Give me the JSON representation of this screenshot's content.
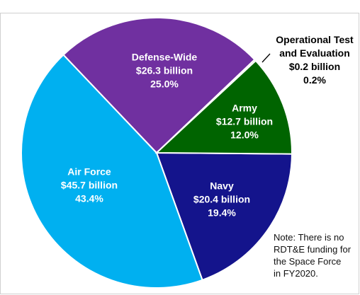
{
  "chart_data": {
    "type": "pie",
    "categories": [
      "Navy",
      "Air Force",
      "Defense-Wide",
      "Operational Test and Evaluation",
      "Army"
    ],
    "values": [
      20.4,
      45.7,
      26.3,
      0.2,
      12.7
    ],
    "value_labels": [
      "$20.4 billion",
      "$45.7 billion",
      "$26.3 billion",
      "$0.2 billion",
      "$12.7 billion"
    ],
    "percents": [
      19.4,
      43.4,
      25.0,
      0.2,
      12.0
    ],
    "percent_labels": [
      "19.4%",
      "43.4%",
      "25.0%",
      "0.2%",
      "12.0%"
    ],
    "colors": [
      "#14148c",
      "#00b0f0",
      "#7030a0",
      "#a6a6a6",
      "#006400"
    ],
    "note": [
      "Note: There is no",
      "RDT&E funding for",
      "the Space Force",
      "in FY2020."
    ]
  }
}
